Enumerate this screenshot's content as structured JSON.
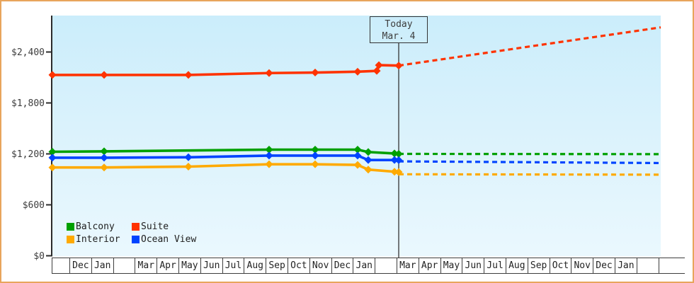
{
  "colors": {
    "frame_border": "#E8A55C",
    "plot_gradient_top": "#CBEDFB",
    "plot_gradient_bottom": "#EAF8FE",
    "axis": "#2B2B2B",
    "today_line": "#333333",
    "text": "#3D3D3D",
    "balcony": "#00A000",
    "suite": "#FF3300",
    "interior": "#FFAA00",
    "ocean_view": "#0044FF"
  },
  "today": {
    "line1": "Today",
    "line2": "Mar. 4"
  },
  "legend": [
    {
      "label": "Balcony",
      "color": "#00A000"
    },
    {
      "label": "Suite",
      "color": "#FF3300"
    },
    {
      "label": "Interior",
      "color": "#FFAA00"
    },
    {
      "label": "Ocean View",
      "color": "#0044FF"
    }
  ],
  "chart_data": {
    "type": "line",
    "title": "",
    "ylabel": "",
    "xlabel": "",
    "grid": false,
    "legend_position": "bottom-left-inside",
    "ylim": [
      0,
      2830
    ],
    "y_ticks": {
      "labels": [
        "$2,400",
        "$1,800",
        "$1,200",
        "$600",
        "$0"
      ],
      "values": [
        2400,
        1800,
        1200,
        600,
        0
      ]
    },
    "x_axis_months": [
      "Dec",
      "Jan",
      "",
      "Mar",
      "Apr",
      "May",
      "Jun",
      "Jul",
      "Aug",
      "Sep",
      "Oct",
      "Nov",
      "Dec",
      "Jan",
      "",
      "Mar",
      "Apr",
      "May",
      "Jun",
      "Jul",
      "Aug",
      "Sep",
      "Oct",
      "Nov",
      "Dec",
      "Jan",
      ""
    ],
    "today_t": 0.5693,
    "today_label": "Today Mar. 4",
    "series": [
      {
        "name": "Balcony",
        "color": "#00A000",
        "solid": [
          [
            0,
            1225
          ],
          [
            0.085,
            1230
          ],
          [
            0.3562,
            1250
          ],
          [
            0.4319,
            1250
          ],
          [
            0.5017,
            1250
          ],
          [
            0.5192,
            1222
          ],
          [
            0.5623,
            1205
          ],
          [
            0.5693,
            1200
          ]
        ],
        "predicted": [
          [
            0.5693,
            1200
          ],
          [
            1,
            1197
          ]
        ]
      },
      {
        "name": "Suite",
        "color": "#FF3300",
        "solid": [
          [
            0,
            2130
          ],
          [
            0.085,
            2130
          ],
          [
            0.2235,
            2130
          ],
          [
            0.3562,
            2152
          ],
          [
            0.4319,
            2158
          ],
          [
            0.5017,
            2168
          ],
          [
            0.5332,
            2178
          ],
          [
            0.5367,
            2245
          ],
          [
            0.5693,
            2240
          ]
        ],
        "predicted": [
          [
            0.5693,
            2240
          ],
          [
            1,
            2690
          ]
        ]
      },
      {
        "name": "Interior",
        "color": "#FFAA00",
        "solid": [
          [
            0,
            1040
          ],
          [
            0.085,
            1040
          ],
          [
            0.2235,
            1050
          ],
          [
            0.3562,
            1078
          ],
          [
            0.4319,
            1078
          ],
          [
            0.5017,
            1070
          ],
          [
            0.5192,
            1015
          ],
          [
            0.5623,
            990
          ],
          [
            0.5693,
            985
          ]
        ],
        "predicted": [
          [
            0.5693,
            960
          ],
          [
            1,
            955
          ]
        ]
      },
      {
        "name": "Ocean View",
        "color": "#0044FF",
        "solid": [
          [
            0,
            1155
          ],
          [
            0.085,
            1155
          ],
          [
            0.2235,
            1160
          ],
          [
            0.3562,
            1180
          ],
          [
            0.4319,
            1180
          ],
          [
            0.5017,
            1180
          ],
          [
            0.5192,
            1128
          ],
          [
            0.5623,
            1128
          ],
          [
            0.5693,
            1126
          ]
        ],
        "predicted": [
          [
            0.5693,
            1112
          ],
          [
            1,
            1092
          ]
        ]
      }
    ]
  }
}
